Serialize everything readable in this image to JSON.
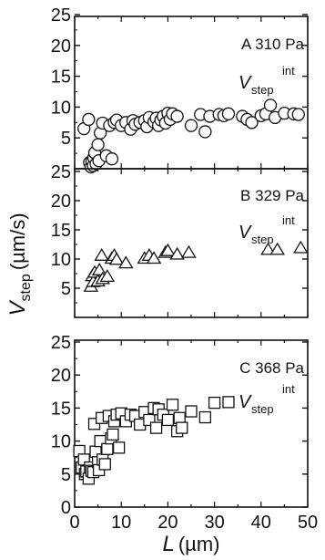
{
  "chart_data": [
    {
      "type": "scatter",
      "panel": "A",
      "annotation": "A 310 Pa",
      "marker": "circle",
      "xlim": [
        0,
        50
      ],
      "ylim": [
        0,
        25
      ],
      "yticks": [
        "25",
        "20",
        "15",
        "10",
        "5"
      ],
      "series": [
        {
          "x": [
            2,
            3,
            3.2,
            3.5,
            3.7,
            4,
            4.1,
            4.3,
            4.6,
            5,
            5.2,
            5.5,
            6,
            6.8,
            7.5,
            8,
            8.5,
            9,
            10,
            11,
            12,
            12.5,
            13,
            14,
            15,
            15.5,
            16,
            17,
            17.5,
            18,
            18.5,
            19,
            19.5,
            20,
            20.5,
            21,
            22,
            25,
            27,
            28,
            29,
            31,
            32,
            33,
            36,
            37,
            38,
            40,
            41,
            42,
            43,
            45,
            47,
            48
          ],
          "y": [
            6.5,
            8.0,
            1.0,
            0.3,
            1.2,
            0.5,
            1.8,
            2.6,
            0.8,
            3.9,
            1.3,
            5.8,
            7.4,
            2.1,
            7.0,
            1.6,
            7.5,
            7.9,
            7.0,
            7.5,
            6.4,
            7.8,
            7.2,
            7.5,
            7.8,
            6.8,
            8.3,
            7.6,
            8.2,
            7.0,
            7.9,
            8.5,
            7.4,
            9.0,
            8.0,
            8.9,
            8.5,
            7.0,
            8.8,
            6.0,
            8.5,
            8.8,
            8.6,
            8.9,
            8.5,
            8.0,
            7.5,
            8.6,
            8.9,
            10.3,
            8.3,
            9.0,
            8.9,
            8.8
          ]
        }
      ]
    },
    {
      "type": "scatter",
      "panel": "B",
      "annotation": "B 329 Pa",
      "marker": "triangle",
      "xlim": [
        0,
        50
      ],
      "ylim": [
        0,
        25
      ],
      "yticks": [
        "25",
        "20",
        "15",
        "10",
        "5"
      ],
      "series": [
        {
          "x": [
            3.5,
            3.8,
            4.0,
            4.3,
            5.0,
            5.3,
            5.8,
            6.0,
            7.0,
            8.0,
            8.5,
            9.0,
            11.0,
            15.0,
            16.0,
            17.0,
            19.5,
            20.0,
            22.0,
            24.5,
            41.5,
            43.5,
            48.5
          ],
          "y": [
            5.2,
            7.0,
            6.0,
            7.6,
            6.1,
            8.0,
            10.5,
            6.5,
            6.9,
            10.0,
            10.5,
            9.8,
            9.2,
            10.0,
            10.5,
            10.0,
            11.0,
            11.3,
            10.7,
            11.0,
            11.5,
            11.5,
            11.8
          ]
        }
      ]
    },
    {
      "type": "scatter",
      "panel": "C",
      "annotation": "C 368 Pa",
      "marker": "square",
      "xlim": [
        0,
        50
      ],
      "ylim": [
        0,
        25
      ],
      "yticks": [
        "25",
        "20",
        "15",
        "10",
        "5",
        "0"
      ],
      "xticks": [
        "0",
        "10",
        "20",
        "30",
        "40",
        "50"
      ],
      "series": [
        {
          "x": [
            1.0,
            1.5,
            2.0,
            2.2,
            2.5,
            3.0,
            3.3,
            3.6,
            4.0,
            4.2,
            4.5,
            5.0,
            5.2,
            5.5,
            5.8,
            6.0,
            6.5,
            7.0,
            7.3,
            7.8,
            8.2,
            8.5,
            9.0,
            9.5,
            10.0,
            11.0,
            12.0,
            13.0,
            14.0,
            15.0,
            16.0,
            17.0,
            17.5,
            18.0,
            19.0,
            20.0,
            21.0,
            22.0,
            22.5,
            23.0,
            25.0,
            28.0,
            30.0,
            33.0
          ],
          "y": [
            8.5,
            6.0,
            7.2,
            5.0,
            5.4,
            4.3,
            6.0,
            5.5,
            5.3,
            12.6,
            8.4,
            6.8,
            5.6,
            10.0,
            13.5,
            7.2,
            6.5,
            8.8,
            13.8,
            10.4,
            11.0,
            13.0,
            14.0,
            9.0,
            14.2,
            13.0,
            14.0,
            13.8,
            12.5,
            14.4,
            13.2,
            15.0,
            12.0,
            14.8,
            14.0,
            13.2,
            15.5,
            11.5,
            13.5,
            12.0,
            14.5,
            13.6,
            15.8,
            15.9
          ]
        }
      ]
    }
  ],
  "shared": {
    "xlabel_main": "L",
    "xlabel_unit": "(µm)",
    "ylabel_main": "V",
    "ylabel_sub": "step",
    "ylabel_unit": "(µm/s)",
    "inset_label_main": "V",
    "inset_label_sub": "step",
    "inset_label_sup": "int"
  }
}
